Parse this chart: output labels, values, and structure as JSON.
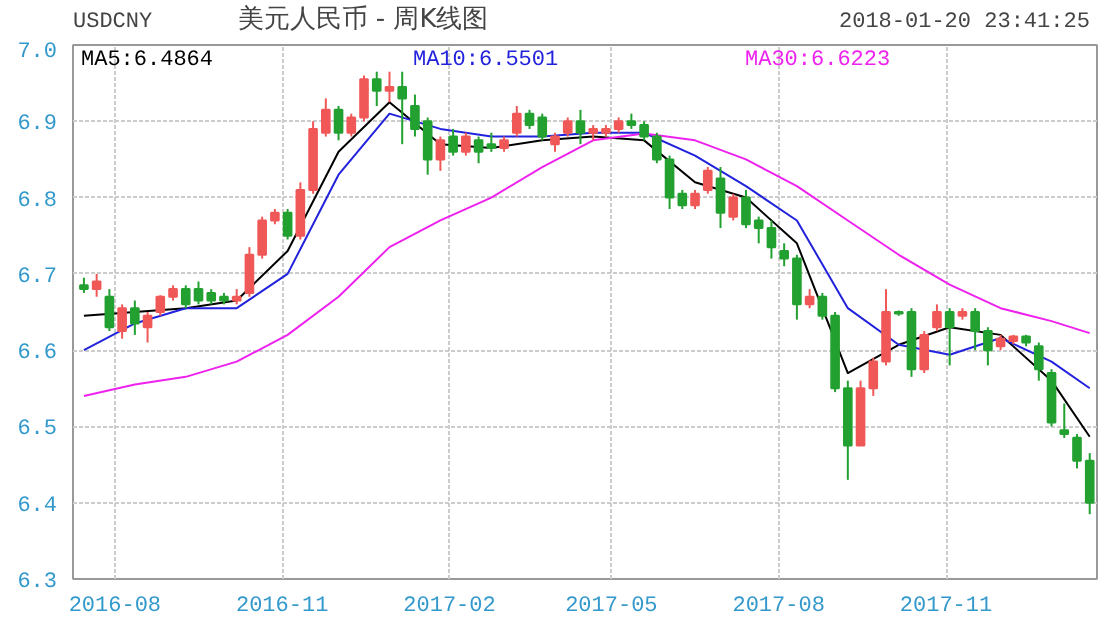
{
  "chart_data": {
    "type": "candlestick",
    "title": "美元人民币 - 周K线图",
    "annotations": [
      "USDCNY",
      "2018-01-20 23:41:25"
    ],
    "x": [
      "2016-07-15",
      "2016-07-22",
      "2016-07-29",
      "2016-08-05",
      "2016-08-12",
      "2016-08-19",
      "2016-08-26",
      "2016-09-02",
      "2016-09-09",
      "2016-09-16",
      "2016-09-23",
      "2016-09-30",
      "2016-10-07",
      "2016-10-14",
      "2016-10-21",
      "2016-10-28",
      "2016-11-04",
      "2016-11-11",
      "2016-11-18",
      "2016-11-25",
      "2016-12-02",
      "2016-12-09",
      "2016-12-16",
      "2016-12-23",
      "2016-12-30",
      "2017-01-06",
      "2017-01-13",
      "2017-01-20",
      "2017-01-27",
      "2017-02-03",
      "2017-02-10",
      "2017-02-17",
      "2017-02-24",
      "2017-03-03",
      "2017-03-10",
      "2017-03-17",
      "2017-03-24",
      "2017-03-31",
      "2017-04-07",
      "2017-04-14",
      "2017-04-21",
      "2017-04-28",
      "2017-05-05",
      "2017-05-12",
      "2017-05-19",
      "2017-05-26",
      "2017-06-02",
      "2017-06-09",
      "2017-06-16",
      "2017-06-23",
      "2017-06-30",
      "2017-07-07",
      "2017-07-14",
      "2017-07-21",
      "2017-07-28",
      "2017-08-04",
      "2017-08-11",
      "2017-08-18",
      "2017-08-25",
      "2017-09-01",
      "2017-09-08",
      "2017-09-15",
      "2017-09-22",
      "2017-09-29",
      "2017-10-06",
      "2017-10-13",
      "2017-10-20",
      "2017-10-27",
      "2017-11-03",
      "2017-11-10",
      "2017-11-17",
      "2017-11-24",
      "2017-12-01",
      "2017-12-08",
      "2017-12-15",
      "2017-12-22",
      "2017-12-29",
      "2018-01-05",
      "2018-01-12",
      "2018-01-19"
    ],
    "ohlc": [
      [
        6.685,
        6.695,
        6.675,
        6.68
      ],
      [
        6.68,
        6.7,
        6.67,
        6.69
      ],
      [
        6.67,
        6.68,
        6.625,
        6.63
      ],
      [
        6.625,
        6.66,
        6.615,
        6.655
      ],
      [
        6.655,
        6.665,
        6.62,
        6.635
      ],
      [
        6.63,
        6.65,
        6.61,
        6.645
      ],
      [
        6.65,
        6.672,
        6.645,
        6.67
      ],
      [
        6.67,
        6.685,
        6.665,
        6.68
      ],
      [
        6.68,
        6.685,
        6.655,
        6.66
      ],
      [
        6.68,
        6.69,
        6.66,
        6.665
      ],
      [
        6.675,
        6.68,
        6.66,
        6.665
      ],
      [
        6.67,
        6.675,
        6.66,
        6.665
      ],
      [
        6.665,
        6.68,
        6.66,
        6.67
      ],
      [
        6.675,
        6.735,
        6.67,
        6.725
      ],
      [
        6.725,
        6.775,
        6.72,
        6.77
      ],
      [
        6.77,
        6.785,
        6.765,
        6.78
      ],
      [
        6.78,
        6.785,
        6.745,
        6.75
      ],
      [
        6.75,
        6.82,
        6.745,
        6.81
      ],
      [
        6.81,
        6.9,
        6.805,
        6.89
      ],
      [
        6.885,
        6.93,
        6.88,
        6.915
      ],
      [
        6.915,
        6.92,
        6.875,
        6.885
      ],
      [
        6.885,
        6.91,
        6.88,
        6.905
      ],
      [
        6.905,
        6.96,
        6.9,
        6.955
      ],
      [
        6.955,
        6.965,
        6.92,
        6.94
      ],
      [
        6.94,
        6.965,
        6.925,
        6.945
      ],
      [
        6.945,
        6.965,
        6.87,
        6.93
      ],
      [
        6.92,
        6.935,
        6.88,
        6.89
      ],
      [
        6.9,
        6.905,
        6.83,
        6.85
      ],
      [
        6.85,
        6.88,
        6.835,
        6.875
      ],
      [
        6.88,
        6.89,
        6.855,
        6.86
      ],
      [
        6.86,
        6.885,
        6.855,
        6.88
      ],
      [
        6.875,
        6.88,
        6.845,
        6.86
      ],
      [
        6.87,
        6.885,
        6.86,
        6.865
      ],
      [
        6.865,
        6.88,
        6.86,
        6.875
      ],
      [
        6.885,
        6.92,
        6.88,
        6.91
      ],
      [
        6.91,
        6.915,
        6.89,
        6.895
      ],
      [
        6.905,
        6.91,
        6.875,
        6.88
      ],
      [
        6.87,
        6.885,
        6.86,
        6.88
      ],
      [
        6.885,
        6.905,
        6.88,
        6.9
      ],
      [
        6.9,
        6.915,
        6.87,
        6.885
      ],
      [
        6.885,
        6.895,
        6.875,
        6.89
      ],
      [
        6.885,
        6.895,
        6.88,
        6.89
      ],
      [
        6.89,
        6.905,
        6.885,
        6.9
      ],
      [
        6.9,
        6.91,
        6.89,
        6.895
      ],
      [
        6.895,
        6.9,
        6.875,
        6.88
      ],
      [
        6.88,
        6.885,
        6.845,
        6.85
      ],
      [
        6.85,
        6.855,
        6.785,
        6.8
      ],
      [
        6.805,
        6.81,
        6.785,
        6.79
      ],
      [
        6.79,
        6.81,
        6.785,
        6.805
      ],
      [
        6.81,
        6.84,
        6.805,
        6.835
      ],
      [
        6.825,
        6.84,
        6.76,
        6.78
      ],
      [
        6.775,
        6.805,
        6.77,
        6.8
      ],
      [
        6.8,
        6.81,
        6.76,
        6.765
      ],
      [
        6.77,
        6.775,
        6.74,
        6.76
      ],
      [
        6.76,
        6.77,
        6.72,
        6.735
      ],
      [
        6.73,
        6.74,
        6.71,
        6.72
      ],
      [
        6.72,
        6.725,
        6.64,
        6.66
      ],
      [
        6.66,
        6.68,
        6.655,
        6.67
      ],
      [
        6.67,
        6.675,
        6.64,
        6.645
      ],
      [
        6.645,
        6.65,
        6.545,
        6.55
      ],
      [
        6.55,
        6.56,
        6.43,
        6.475
      ],
      [
        6.475,
        6.56,
        6.475,
        6.55
      ],
      [
        6.55,
        6.59,
        6.54,
        6.585
      ],
      [
        6.585,
        6.68,
        6.58,
        6.65
      ],
      [
        6.65,
        6.652,
        6.645,
        6.648
      ],
      [
        6.65,
        6.655,
        6.565,
        6.575
      ],
      [
        6.575,
        6.625,
        6.57,
        6.62
      ],
      [
        6.63,
        6.66,
        6.625,
        6.65
      ],
      [
        6.65,
        6.655,
        6.58,
        6.63
      ],
      [
        6.645,
        6.655,
        6.64,
        6.65
      ],
      [
        6.65,
        6.655,
        6.6,
        6.625
      ],
      [
        6.625,
        6.63,
        6.58,
        6.6
      ],
      [
        6.605,
        6.62,
        6.6,
        6.615
      ],
      [
        6.612,
        6.62,
        6.608,
        6.618
      ],
      [
        6.618,
        6.62,
        6.605,
        6.61
      ],
      [
        6.605,
        6.61,
        6.56,
        6.575
      ],
      [
        6.57,
        6.575,
        6.5,
        6.505
      ],
      [
        6.495,
        6.53,
        6.485,
        6.49
      ],
      [
        6.485,
        6.49,
        6.445,
        6.455
      ],
      [
        6.455,
        6.465,
        6.385,
        6.4
      ]
    ],
    "colors": [
      "#22a030",
      "#f05858",
      "#22a030",
      "#f05858",
      "#22a030",
      "#f05858",
      "#f05858",
      "#f05858",
      "#22a030",
      "#22a030",
      "#22a030",
      "#22a030",
      "#f05858",
      "#f05858",
      "#f05858",
      "#f05858",
      "#22a030",
      "#f05858",
      "#f05858",
      "#f05858",
      "#22a030",
      "#f05858",
      "#f05858",
      "#22a030",
      "#f05858",
      "#22a030",
      "#22a030",
      "#22a030",
      "#f05858",
      "#22a030",
      "#f05858",
      "#22a030",
      "#22a030",
      "#f05858",
      "#f05858",
      "#22a030",
      "#22a030",
      "#f05858",
      "#f05858",
      "#22a030",
      "#f05858",
      "#f05858",
      "#f05858",
      "#22a030",
      "#22a030",
      "#22a030",
      "#22a030",
      "#22a030",
      "#f05858",
      "#f05858",
      "#22a030",
      "#f05858",
      "#22a030",
      "#22a030",
      "#22a030",
      "#22a030",
      "#22a030",
      "#f05858",
      "#22a030",
      "#22a030",
      "#22a030",
      "#f05858",
      "#f05858",
      "#f05858",
      "#22a030",
      "#22a030",
      "#f05858",
      "#f05858",
      "#22a030",
      "#f05858",
      "#22a030",
      "#22a030",
      "#f05858",
      "#f05858",
      "#22a030",
      "#22a030",
      "#22a030",
      "#22a030",
      "#22a030",
      "#22a030"
    ],
    "series": [
      {
        "name": "MA5:6.4864",
        "type": "line",
        "color": "#000000",
        "x": [
          "2016-07-15",
          "2016-08-12",
          "2016-09-09",
          "2016-10-07",
          "2016-11-04",
          "2016-12-02",
          "2016-12-30",
          "2017-01-27",
          "2017-02-24",
          "2017-03-24",
          "2017-04-21",
          "2017-05-19",
          "2017-06-16",
          "2017-07-14",
          "2017-08-11",
          "2017-09-08",
          "2017-10-06",
          "2017-11-03",
          "2017-12-01",
          "2017-12-29",
          "2018-01-19"
        ],
        "values": [
          6.645,
          6.65,
          6.655,
          6.665,
          6.73,
          6.86,
          6.925,
          6.87,
          6.865,
          6.875,
          6.88,
          6.875,
          6.82,
          6.8,
          6.74,
          6.57,
          6.607,
          6.63,
          6.62,
          6.56,
          6.4864
        ]
      },
      {
        "name": "MA10:6.5501",
        "type": "line",
        "color": "#2222dd",
        "x": [
          "2016-07-15",
          "2016-08-12",
          "2016-09-09",
          "2016-10-07",
          "2016-11-04",
          "2016-12-02",
          "2016-12-30",
          "2017-01-27",
          "2017-02-24",
          "2017-03-24",
          "2017-04-21",
          "2017-05-19",
          "2017-06-16",
          "2017-07-14",
          "2017-08-11",
          "2017-09-08",
          "2017-10-06",
          "2017-11-03",
          "2017-12-01",
          "2017-12-29",
          "2018-01-19"
        ],
        "values": [
          6.6,
          6.635,
          6.655,
          6.655,
          6.7,
          6.83,
          6.91,
          6.89,
          6.88,
          6.88,
          6.885,
          6.885,
          6.855,
          6.815,
          6.77,
          6.655,
          6.607,
          6.594,
          6.616,
          6.585,
          6.5501
        ]
      },
      {
        "name": "MA30:6.6223",
        "type": "line",
        "color": "#ee22ee",
        "x": [
          "2016-07-15",
          "2016-08-12",
          "2016-09-09",
          "2016-10-07",
          "2016-11-04",
          "2016-12-02",
          "2016-12-30",
          "2017-01-27",
          "2017-02-24",
          "2017-03-24",
          "2017-04-21",
          "2017-05-19",
          "2017-06-16",
          "2017-07-14",
          "2017-08-11",
          "2017-09-08",
          "2017-10-06",
          "2017-11-03",
          "2017-12-01",
          "2017-12-29",
          "2018-01-19"
        ],
        "values": [
          6.54,
          6.555,
          6.565,
          6.585,
          6.62,
          6.67,
          6.735,
          6.77,
          6.8,
          6.84,
          6.875,
          6.884,
          6.875,
          6.85,
          6.815,
          6.77,
          6.725,
          6.686,
          6.655,
          6.638,
          6.6223
        ]
      }
    ],
    "legend": "top",
    "grid": true,
    "xlim": [
      "2016-07-09",
      "2018-01-23"
    ],
    "xticks": [
      {
        "value": "2016-08-01",
        "label": "2016-08"
      },
      {
        "value": "2016-11-01",
        "label": "2016-11"
      },
      {
        "value": "2017-02-01",
        "label": "2017-02"
      },
      {
        "value": "2017-05-01",
        "label": "2017-05"
      },
      {
        "value": "2017-08-01",
        "label": "2017-08"
      },
      {
        "value": "2017-11-01",
        "label": "2017-11"
      }
    ],
    "ylim": [
      6.3,
      7.0
    ],
    "yticks": [
      {
        "value": 6.3,
        "label": "6.3"
      },
      {
        "value": 6.4,
        "label": "6.4"
      },
      {
        "value": 6.5,
        "label": "6.5"
      },
      {
        "value": 6.6,
        "label": "6.6"
      },
      {
        "value": 6.7,
        "label": "6.7"
      },
      {
        "value": 6.8,
        "label": "6.8"
      },
      {
        "value": 6.9,
        "label": "6.9"
      },
      {
        "value": 7.0,
        "label": "7.0"
      }
    ]
  }
}
